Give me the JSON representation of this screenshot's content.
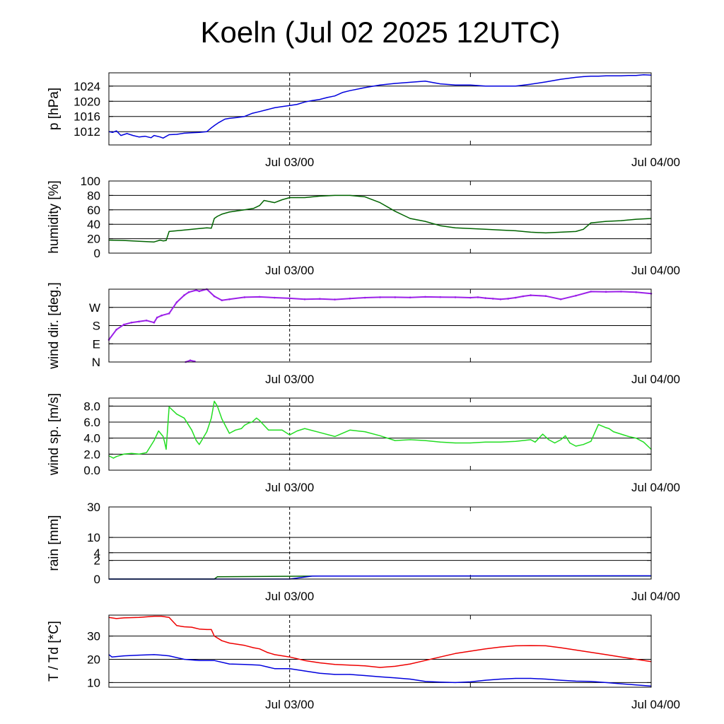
{
  "title": "Koeln (Jul 02 2025 12UTC)",
  "time_axis": {
    "start_hour": 0,
    "end_hour": 36,
    "labeled_ticks": [
      {
        "hour": 12,
        "label": "Jul 03/00"
      },
      {
        "hour": 36,
        "label": "Jul 04/00"
      }
    ],
    "minor_ticks": [
      24
    ],
    "dashed_marker_hour": 12
  },
  "chart_data": [
    {
      "type": "line",
      "id": "pressure",
      "ylabel": "p [hPa]",
      "ylim": [
        1008.5,
        1027.5
      ],
      "grid_values": [
        1012,
        1016,
        1020,
        1024
      ],
      "ytick_labels": [
        {
          "v": 1012,
          "t": "1012"
        },
        {
          "v": 1016,
          "t": "1016"
        },
        {
          "v": 1020,
          "t": "1020"
        },
        {
          "v": 1024,
          "t": "1024"
        }
      ],
      "series": [
        {
          "color": "#0000dd",
          "x": [
            0,
            0.25,
            0.5,
            0.8,
            1.2,
            1.6,
            2,
            2.4,
            2.8,
            3,
            3.4,
            3.6,
            4,
            4.5,
            5,
            5.5,
            6,
            6.5,
            6.8,
            7,
            7.3,
            7.7,
            8,
            8.5,
            9,
            9.5,
            10,
            10.5,
            11,
            11.5,
            12,
            12.5,
            13,
            13.5,
            14,
            14.5,
            15,
            15.5,
            16,
            17,
            18,
            19,
            20,
            21,
            22,
            23,
            24,
            25,
            26,
            27,
            28,
            29,
            30,
            31,
            31.5,
            32,
            32.5,
            33,
            33.5,
            34,
            34.5,
            35,
            35.5,
            36
          ],
          "values": [
            1012,
            1011.8,
            1012.2,
            1011,
            1011.5,
            1011,
            1010.6,
            1010.8,
            1010.4,
            1011,
            1010.6,
            1010.3,
            1011.2,
            1011.3,
            1011.6,
            1011.7,
            1011.8,
            1012,
            1013,
            1013.6,
            1014.4,
            1015.3,
            1015.5,
            1015.7,
            1016,
            1016.8,
            1017.3,
            1017.8,
            1018.3,
            1018.6,
            1018.9,
            1019.2,
            1019.8,
            1020.2,
            1020.5,
            1021,
            1021.4,
            1022.3,
            1022.8,
            1023.6,
            1024.3,
            1024.7,
            1025,
            1025.3,
            1024.6,
            1024.3,
            1024.3,
            1024,
            1024,
            1024,
            1024.5,
            1025.1,
            1025.8,
            1026.3,
            1026.5,
            1026.6,
            1026.6,
            1026.7,
            1026.7,
            1026.7,
            1026.8,
            1026.8,
            1027,
            1026.9
          ]
        }
      ]
    },
    {
      "type": "line",
      "id": "humidity",
      "ylabel": "humidity [%]",
      "ylim": [
        0,
        100
      ],
      "grid_values": [
        20,
        40,
        60,
        80
      ],
      "ytick_labels": [
        {
          "v": 0,
          "t": "0"
        },
        {
          "v": 20,
          "t": "20"
        },
        {
          "v": 40,
          "t": "40"
        },
        {
          "v": 60,
          "t": "60"
        },
        {
          "v": 80,
          "t": "80"
        },
        {
          "v": 100,
          "t": "100"
        }
      ],
      "series": [
        {
          "color": "#006400",
          "x": [
            0,
            1,
            2,
            2.5,
            3,
            3.4,
            3.6,
            3.8,
            4,
            5,
            6,
            6.5,
            6.8,
            7,
            7.2,
            7.5,
            8,
            9,
            9.6,
            10,
            10.3,
            11,
            11.5,
            12,
            12.5,
            13,
            14,
            15,
            16,
            16.5,
            17,
            18,
            19,
            20,
            21,
            22,
            23,
            24,
            25,
            26,
            27,
            28,
            29,
            30,
            31,
            31.5,
            32,
            33,
            34,
            35,
            36
          ],
          "values": [
            18,
            17.5,
            16.5,
            16,
            15.5,
            18,
            17,
            17.5,
            30,
            32,
            34,
            35,
            34.5,
            48,
            51,
            54,
            57,
            60,
            62,
            66,
            73,
            70,
            74,
            77,
            77,
            77,
            79,
            80,
            80,
            79,
            78,
            70,
            58,
            48,
            44,
            38,
            35,
            34,
            33,
            32,
            31,
            29,
            28,
            29,
            30,
            33,
            42,
            44,
            45,
            47,
            48
          ]
        }
      ]
    },
    {
      "type": "scatter",
      "id": "wind_direction",
      "ylabel": "wind dir. [deg.]",
      "ylim": [
        0,
        360
      ],
      "grid_values": [
        90,
        180,
        270
      ],
      "ytick_labels": [
        {
          "v": 0,
          "t": "N"
        },
        {
          "v": 90,
          "t": "E"
        },
        {
          "v": 180,
          "t": "S"
        },
        {
          "v": 270,
          "t": "W"
        }
      ],
      "series": [
        {
          "color": "#9b1fe8",
          "x": [
            0,
            0.5,
            1,
            1.5,
            2,
            2.5,
            3,
            3.2,
            3.5,
            4,
            4.5,
            5,
            5.3,
            5.8,
            6,
            6.5,
            7,
            7.5,
            8,
            9,
            10,
            11,
            12,
            13,
            14,
            15,
            16,
            17,
            18,
            19,
            20,
            21,
            22,
            23,
            24,
            24.5,
            25,
            25.5,
            26,
            26.5,
            27,
            27.5,
            28,
            29,
            30,
            31,
            32,
            33,
            34,
            35,
            36
          ],
          "values": [
            110,
            160,
            185,
            195,
            200,
            205,
            195,
            220,
            230,
            240,
            295,
            330,
            345,
            355,
            350,
            360,
            325,
            305,
            310,
            320,
            322,
            318,
            315,
            310,
            312,
            309,
            314,
            318,
            320,
            320,
            319,
            322,
            321,
            320,
            318,
            320,
            316,
            313,
            310,
            313,
            318,
            325,
            330,
            326,
            310,
            328,
            348,
            347,
            348,
            345,
            338
          ]
        },
        {
          "color": "#9b1fe8",
          "x": [
            5.1,
            5.4,
            5.7
          ],
          "values": [
            0,
            8,
            3
          ]
        }
      ]
    },
    {
      "type": "line",
      "id": "wind_speed",
      "ylabel": "wind sp. [m/s]",
      "ylim": [
        0,
        9
      ],
      "grid_values": [
        2,
        4,
        6,
        8
      ],
      "ytick_labels": [
        {
          "v": 0,
          "t": "0.0"
        },
        {
          "v": 2,
          "t": "2.0"
        },
        {
          "v": 4,
          "t": "4.0"
        },
        {
          "v": 6,
          "t": "6.0"
        },
        {
          "v": 8,
          "t": "8.0"
        }
      ],
      "series": [
        {
          "color": "#22dd22",
          "x": [
            0,
            0.3,
            0.5,
            1,
            1.5,
            2,
            2.5,
            3,
            3.3,
            3.6,
            3.7,
            3.8,
            4,
            4.5,
            5,
            5.5,
            5.8,
            6,
            6.5,
            6.8,
            7,
            7.2,
            7.5,
            8,
            8.4,
            8.8,
            9,
            9.3,
            9.5,
            9.8,
            10,
            10.3,
            10.6,
            11,
            11.5,
            12,
            12.5,
            13,
            14,
            15,
            16,
            17,
            18,
            19,
            20,
            21,
            22,
            23,
            24,
            25,
            26,
            27,
            28,
            28.3,
            28.8,
            29.2,
            29.6,
            30,
            30.3,
            30.6,
            31,
            31.5,
            32,
            32.5,
            33,
            33.2,
            33.5,
            34,
            34.5,
            35,
            35.5,
            36
          ],
          "values": [
            1.8,
            1.5,
            1.7,
            2,
            2.1,
            2,
            2.2,
            3.7,
            4.9,
            4.2,
            3.5,
            2.6,
            7.9,
            7,
            6.5,
            5,
            3.7,
            3.2,
            4.8,
            6.5,
            8.6,
            8,
            6.4,
            4.6,
            5,
            5.2,
            5.6,
            5.9,
            6,
            6.5,
            6.2,
            5.6,
            5,
            5,
            5,
            4.4,
            4.9,
            5.2,
            4.7,
            4.2,
            5,
            4.8,
            4.3,
            3.7,
            3.8,
            3.7,
            3.5,
            3.4,
            3.4,
            3.5,
            3.5,
            3.6,
            3.8,
            3.5,
            4.5,
            3.8,
            3.4,
            3.8,
            4.3,
            3.4,
            3,
            3.2,
            3.6,
            5.7,
            5.3,
            5.2,
            4.8,
            4.5,
            4.2,
            4,
            3.5,
            2.6
          ]
        }
      ]
    },
    {
      "type": "line",
      "id": "rain",
      "ylabel": "rain [mm]",
      "ylim": [
        0,
        30
      ],
      "grid_values": [
        2,
        4,
        10,
        30
      ],
      "ytick_labels": [
        {
          "v": 0,
          "t": "0"
        },
        {
          "v": 2,
          "t": "2"
        },
        {
          "v": 4,
          "t": "4"
        },
        {
          "v": 10,
          "t": "10"
        },
        {
          "v": 30,
          "t": "30"
        }
      ],
      "series": [
        {
          "color": "#006400",
          "x": [
            0,
            7,
            7.2,
            14,
            36
          ],
          "values": [
            0,
            0,
            0.03,
            0.05,
            0.05
          ]
        },
        {
          "color": "#0000dd",
          "x": [
            0,
            12,
            13.5,
            36
          ],
          "values": [
            0,
            0,
            0.05,
            0.06
          ]
        }
      ]
    },
    {
      "type": "line",
      "id": "temperature_dewpoint",
      "ylabel": "T / Td [*C]",
      "ylim": [
        8,
        39
      ],
      "grid_values": [
        10,
        20,
        30
      ],
      "ytick_labels": [
        {
          "v": 10,
          "t": "10"
        },
        {
          "v": 20,
          "t": "20"
        },
        {
          "v": 30,
          "t": "30"
        }
      ],
      "series": [
        {
          "color": "#ee0000",
          "x": [
            0,
            0.5,
            1,
            2,
            3,
            3.5,
            3.8,
            4,
            4.5,
            5,
            5.5,
            6,
            6.5,
            6.8,
            7,
            7.5,
            8,
            9,
            9.6,
            10,
            10.5,
            11,
            12,
            13,
            14,
            15,
            16,
            17,
            18,
            19,
            20,
            21,
            22,
            23,
            24,
            25,
            26,
            27,
            28,
            29,
            30,
            31,
            32,
            33,
            34,
            35,
            36
          ],
          "values": [
            38,
            37.5,
            37.8,
            38,
            38.5,
            38.5,
            38.2,
            38,
            34.5,
            34,
            33.8,
            33,
            32.8,
            32.8,
            30,
            28,
            27,
            26,
            25,
            24.5,
            23,
            22,
            21,
            19.5,
            18.5,
            17.8,
            17.5,
            17.2,
            16.5,
            17,
            18,
            19.5,
            21,
            22.5,
            23.5,
            24.5,
            25.3,
            25.8,
            25.9,
            25.8,
            25,
            24,
            23,
            22,
            21,
            20,
            19
          ]
        },
        {
          "color": "#0000dd",
          "x": [
            0,
            0.2,
            1,
            2,
            3,
            3.5,
            4,
            5,
            6,
            7,
            8,
            9,
            10,
            11,
            12,
            13,
            14,
            15,
            16,
            17,
            18,
            19,
            20,
            21,
            22,
            23,
            24,
            25,
            26,
            27,
            28,
            29,
            30,
            31,
            32,
            33,
            34,
            35,
            36
          ],
          "values": [
            22,
            21,
            21.5,
            21.8,
            22,
            21.8,
            21.5,
            20,
            19.5,
            19.5,
            18,
            17.8,
            17.5,
            16,
            16,
            15,
            14,
            13.5,
            13.5,
            13,
            12.5,
            12,
            11.5,
            10.5,
            10.2,
            10,
            10.3,
            11,
            11.5,
            11.8,
            11.8,
            11.5,
            11,
            10.6,
            10.5,
            10,
            9.5,
            9,
            8.5
          ]
        }
      ]
    }
  ]
}
